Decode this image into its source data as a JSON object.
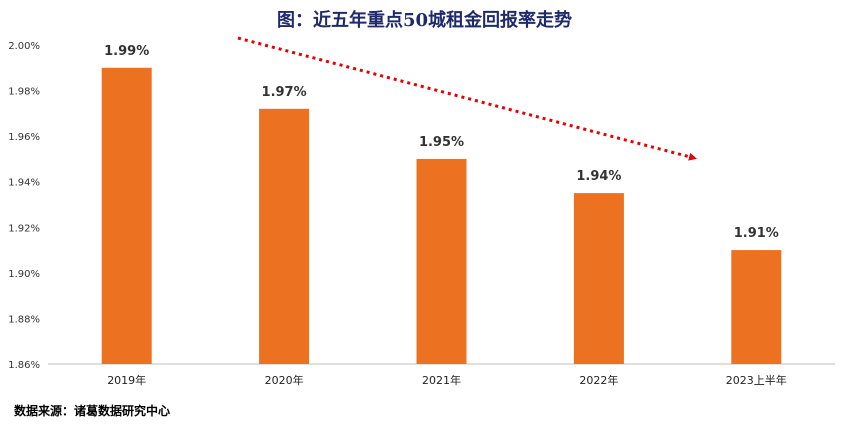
{
  "chart_data": {
    "type": "bar",
    "title": "图：近五年重点50城租金回报率走势",
    "categories": [
      "2019年",
      "2020年",
      "2021年",
      "2022年",
      "2023上半年"
    ],
    "values": [
      1.99,
      1.972,
      1.95,
      1.935,
      1.91
    ],
    "data_labels": [
      "1.99%",
      "1.97%",
      "1.95%",
      "1.94%",
      "1.91%"
    ],
    "ylim": [
      1.86,
      2.0
    ],
    "yticks": [
      1.86,
      1.88,
      1.9,
      1.92,
      1.94,
      1.96,
      1.98,
      2.0
    ],
    "ytick_labels": [
      "1.86%",
      "1.88%",
      "1.90%",
      "1.92%",
      "1.94%",
      "1.96%",
      "1.98%",
      "2.00%"
    ],
    "xlabel": "",
    "ylabel": "",
    "grid": false,
    "bar_color": "#ec7120",
    "trend_arrow_color": "#e60000"
  },
  "source_text": "数据来源：诸葛数据研究中心"
}
